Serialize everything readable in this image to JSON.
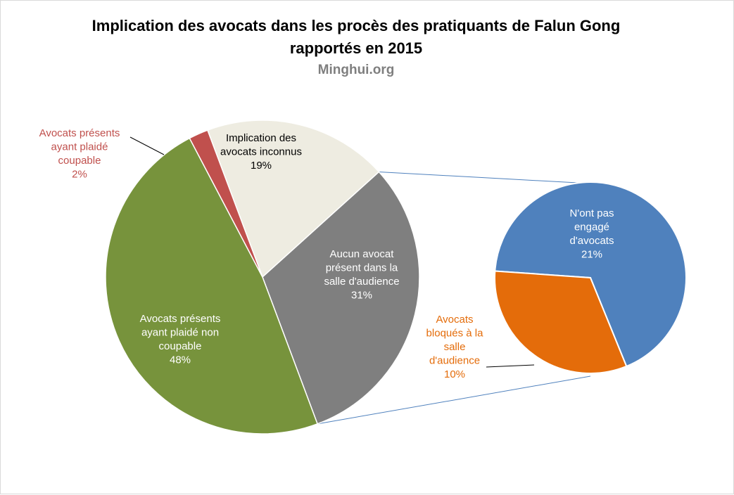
{
  "chart_data": {
    "type": "pie",
    "subtype": "bar-of-pie",
    "title_lines": [
      "Implication des avocats dans les procès des pratiquants de Falun Gong",
      "rapportés en 2015"
    ],
    "source": "Minghui.org",
    "main_pie": [
      {
        "id": "inconnus",
        "label_lines": [
          "Implication des",
          "avocats inconnus"
        ],
        "value": 19,
        "value_label": "19%",
        "color": "#EEECE1",
        "label_color": "#000000"
      },
      {
        "id": "aucun",
        "label_lines": [
          "Aucun avocat",
          "présent dans la",
          "salle d'audience"
        ],
        "value": 31,
        "value_label": "31%",
        "color": "#7F7F7F",
        "label_color": "#ffffff"
      },
      {
        "id": "non-coupable",
        "label_lines": [
          "Avocats présents",
          "ayant plaidé non",
          "coupable"
        ],
        "value": 48,
        "value_label": "48%",
        "color": "#77933C",
        "label_color": "#ffffff"
      },
      {
        "id": "coupable",
        "label_lines": [
          "Avocats présents",
          "ayant plaidé",
          "coupable"
        ],
        "value": 2,
        "value_label": "2%",
        "color": "#C0504D",
        "label_color": "#C0504D"
      }
    ],
    "secondary_pie": [
      {
        "id": "pas-engage",
        "label_lines": [
          "N'ont pas",
          "engagé",
          "d'avocats"
        ],
        "value": 21,
        "value_label": "21%",
        "color": "#4F81BD",
        "label_color": "#ffffff"
      },
      {
        "id": "bloques",
        "label_lines": [
          "Avocats",
          "bloqués à la",
          "salle",
          "d'audience"
        ],
        "value": 10,
        "value_label": "10%",
        "color": "#E46C0A",
        "label_color": "#E46C0A"
      }
    ],
    "expanded_slice": "aucun",
    "legend": "none"
  }
}
